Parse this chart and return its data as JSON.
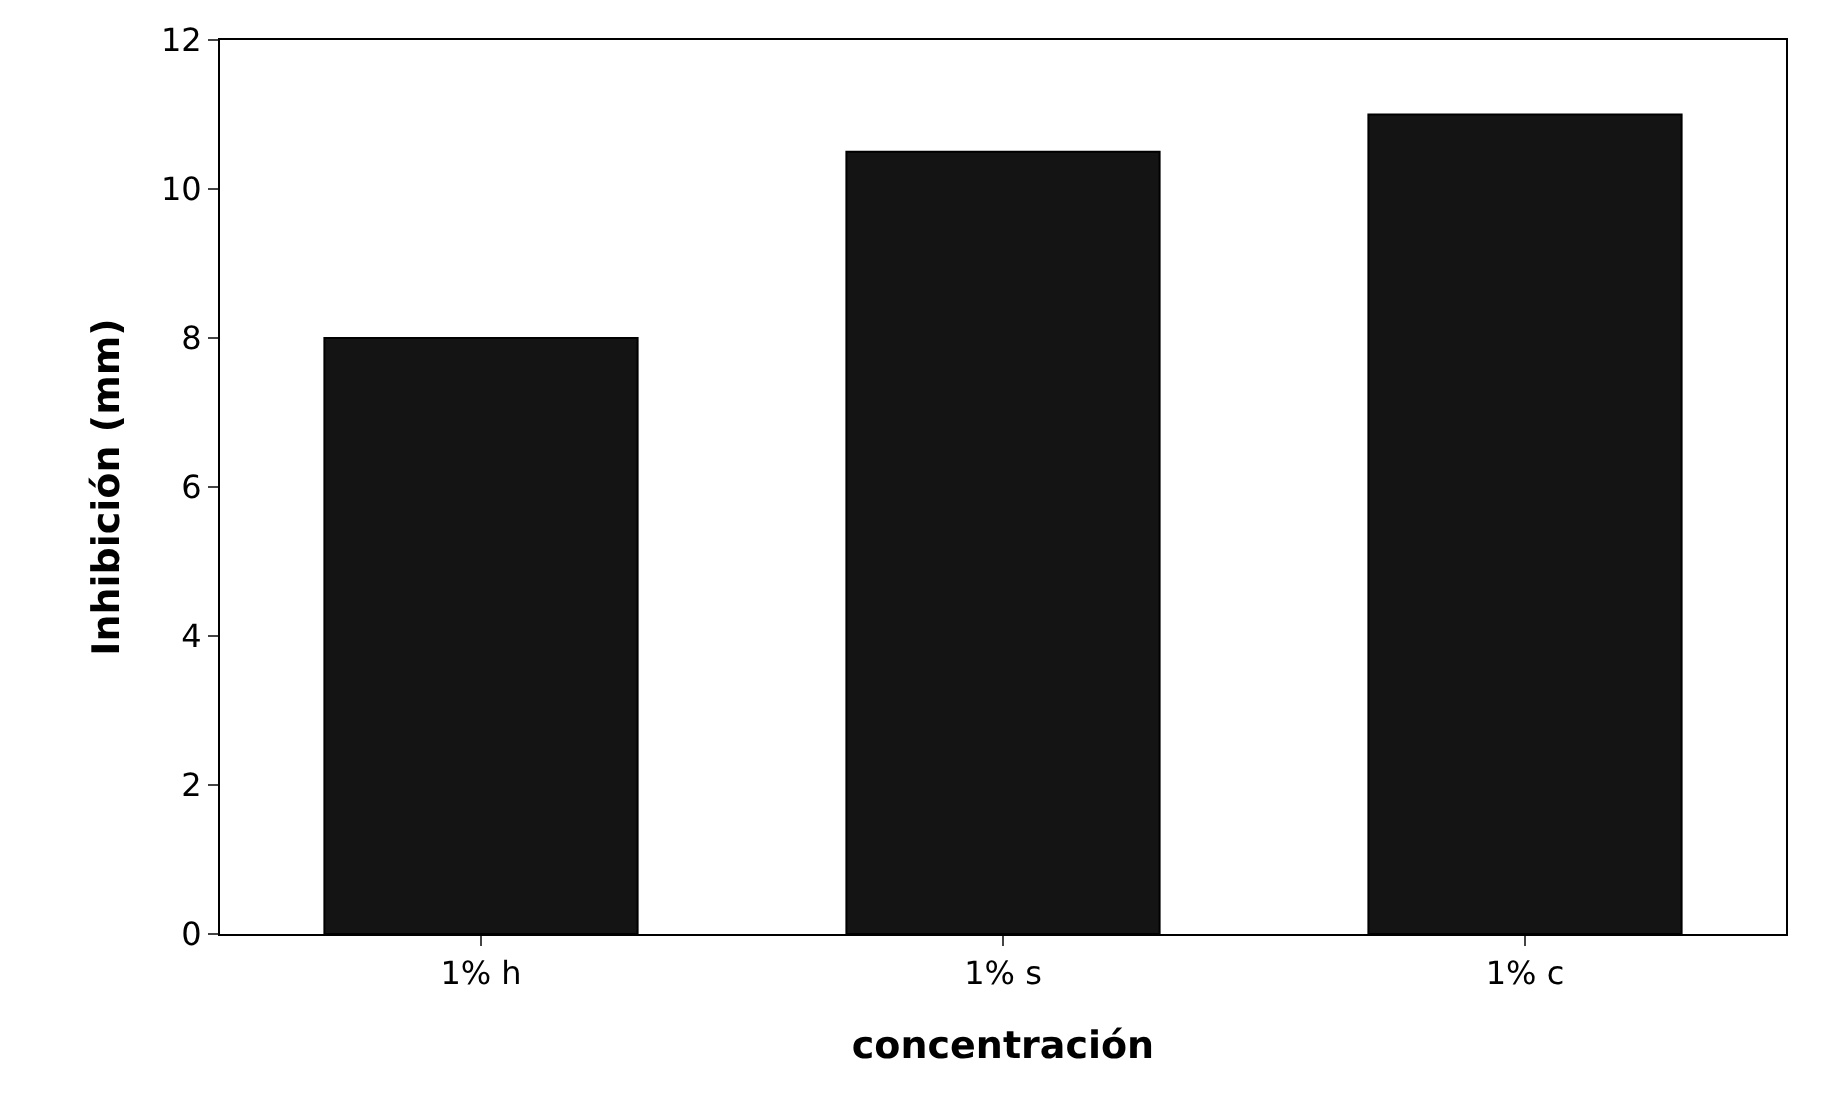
{
  "chart_data": {
    "type": "bar",
    "xlabel": "concentración",
    "ylabel": "Inhibición (mm)",
    "categories": [
      "1% h",
      "1% s",
      "1% c"
    ],
    "values": [
      8,
      10.5,
      11
    ],
    "color": "#141414",
    "ylim": [
      0,
      12
    ],
    "yticks": [
      0,
      2,
      4,
      6,
      8,
      10,
      12
    ],
    "grid": false
  }
}
